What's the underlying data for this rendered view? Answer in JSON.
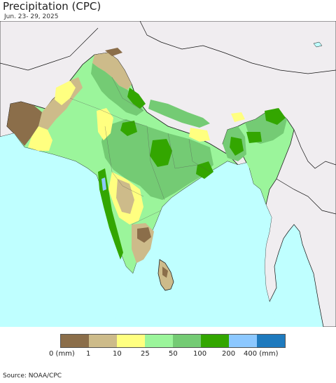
{
  "header": {
    "title": "Precipitation (CPC)",
    "date_range": "Jun. 23- 29, 2025"
  },
  "legend": {
    "labels": [
      "0 (mm)",
      "1",
      "10",
      "25",
      "50",
      "100",
      "200",
      "400 (mm)"
    ],
    "colors": [
      "#8B6E4A",
      "#CDBB8A",
      "#FFFF80",
      "#9BF59B",
      "#74CB74",
      "#33A600",
      "#8CC8FF",
      "#1E7ABE"
    ]
  },
  "map": {
    "ocean_color": "#BFFFFF",
    "land_outside_color": "#F0EDF0"
  },
  "footer": {
    "source": "Source: NOAA/CPC"
  }
}
